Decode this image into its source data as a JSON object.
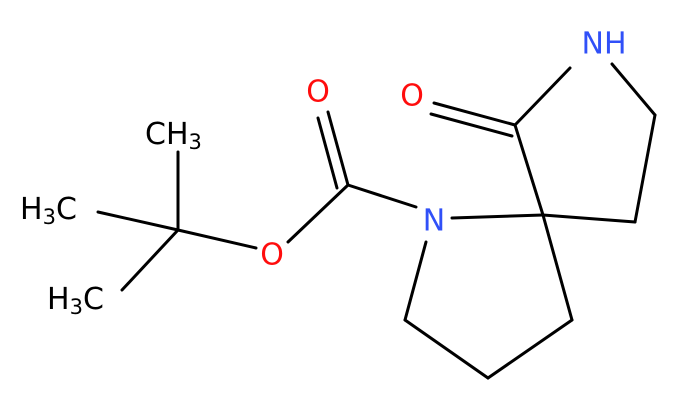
{
  "molecule": {
    "atoms": {
      "carbonyl_oxygen": "O",
      "ester_oxygen": "O",
      "ring_nitrogen": "N",
      "lactam_nitrogen": "NH",
      "lactam_oxygen": "O",
      "methyl_top": {
        "text": "CH",
        "subscript": "3"
      },
      "methyl_middle": {
        "prefix": "H",
        "subscript": "3",
        "text": "C"
      },
      "methyl_bottom": {
        "prefix": "H",
        "subscript": "3",
        "text": "C"
      }
    }
  }
}
